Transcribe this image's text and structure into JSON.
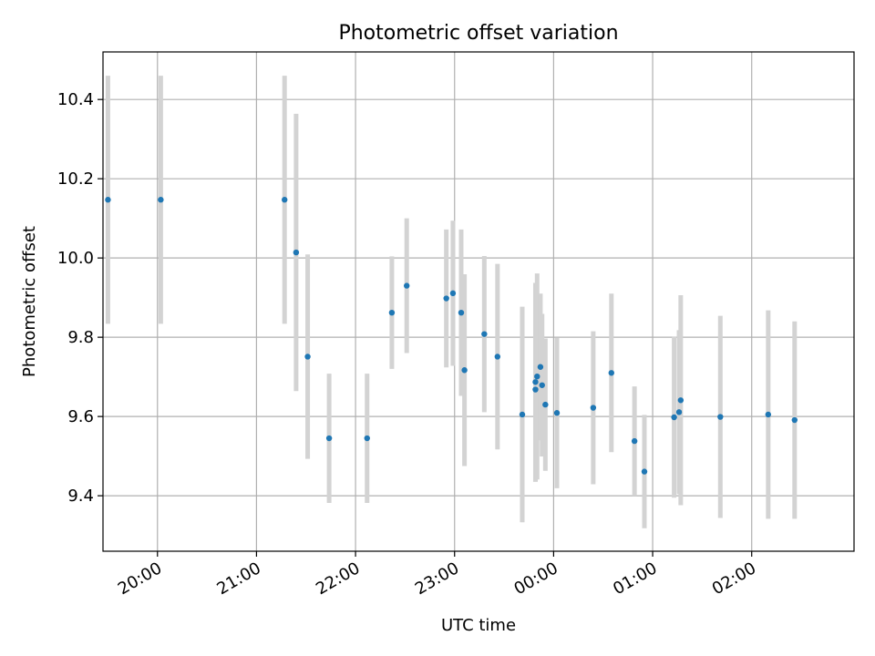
{
  "chart_data": {
    "type": "scatter",
    "title": "Photometric offset variation",
    "xlabel": "UTC time",
    "ylabel": "Photometric offset",
    "x_ticks": [
      "20:00",
      "21:00",
      "22:00",
      "23:00",
      "00:00",
      "01:00",
      "02:00"
    ],
    "y_ticks": [
      "9.4",
      "9.6",
      "9.8",
      "10.0",
      "10.2",
      "10.4"
    ],
    "ylim": [
      9.26,
      10.52
    ],
    "xlim": [
      "19:27",
      "03:02"
    ],
    "grid": true,
    "colors": {
      "point": "#1f77b4",
      "errorbar": "#d3d3d3",
      "grid": "#b0b0b0"
    },
    "points": [
      {
        "t": "19:30",
        "y": 10.147,
        "err": 0.313
      },
      {
        "t": "20:02",
        "y": 10.147,
        "err": 0.313
      },
      {
        "t": "21:17",
        "y": 10.147,
        "err": 0.313
      },
      {
        "t": "21:24",
        "y": 10.014,
        "err": 0.35
      },
      {
        "t": "21:31",
        "y": 9.751,
        "err": 0.258
      },
      {
        "t": "21:44",
        "y": 9.545,
        "err": 0.163
      },
      {
        "t": "22:07",
        "y": 9.545,
        "err": 0.163
      },
      {
        "t": "22:22",
        "y": 9.862,
        "err": 0.142
      },
      {
        "t": "22:31",
        "y": 9.93,
        "err": 0.17
      },
      {
        "t": "22:55",
        "y": 9.898,
        "err": 0.174
      },
      {
        "t": "22:59",
        "y": 9.911,
        "err": 0.183
      },
      {
        "t": "23:04",
        "y": 9.862,
        "err": 0.21
      },
      {
        "t": "23:06",
        "y": 9.717,
        "err": 0.242
      },
      {
        "t": "23:18",
        "y": 9.808,
        "err": 0.197
      },
      {
        "t": "23:26",
        "y": 9.751,
        "err": 0.234
      },
      {
        "t": "23:41",
        "y": 9.605,
        "err": 0.272
      },
      {
        "t": "23:49",
        "y": 9.668,
        "err": 0.233
      },
      {
        "t": "23:49",
        "y": 9.687,
        "err": 0.25
      },
      {
        "t": "23:50",
        "y": 9.701,
        "err": 0.26
      },
      {
        "t": "23:52",
        "y": 9.725,
        "err": 0.185
      },
      {
        "t": "23:53",
        "y": 9.679,
        "err": 0.18
      },
      {
        "t": "23:55",
        "y": 9.63,
        "err": 0.167
      },
      {
        "t": "00:02",
        "y": 9.609,
        "err": 0.19
      },
      {
        "t": "00:24",
        "y": 9.622,
        "err": 0.193
      },
      {
        "t": "00:35",
        "y": 9.71,
        "err": 0.2
      },
      {
        "t": "00:49",
        "y": 9.538,
        "err": 0.138
      },
      {
        "t": "00:55",
        "y": 9.461,
        "err": 0.143
      },
      {
        "t": "01:13",
        "y": 9.598,
        "err": 0.203
      },
      {
        "t": "01:16",
        "y": 9.611,
        "err": 0.207
      },
      {
        "t": "01:17",
        "y": 9.641,
        "err": 0.265
      },
      {
        "t": "01:41",
        "y": 9.599,
        "err": 0.255
      },
      {
        "t": "02:10",
        "y": 9.605,
        "err": 0.263
      },
      {
        "t": "02:26",
        "y": 9.591,
        "err": 0.249
      }
    ]
  }
}
